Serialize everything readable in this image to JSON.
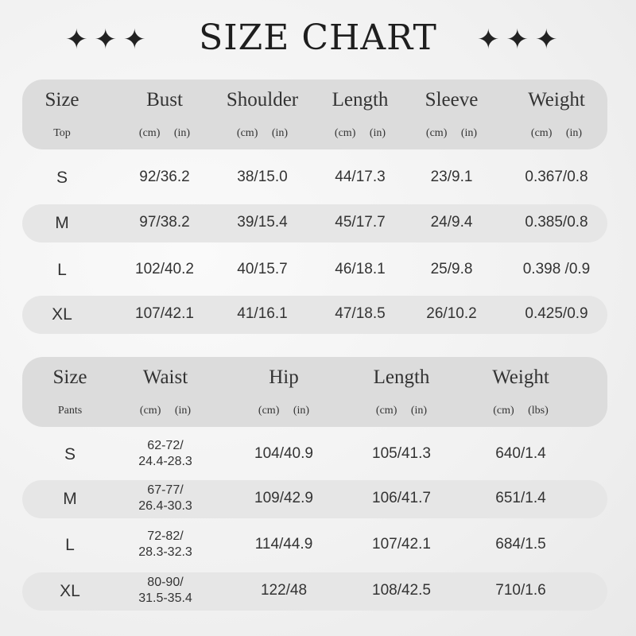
{
  "title": "SIZE CHART",
  "stars_left": "✦✦✦",
  "stars_right": "✦✦✦",
  "top": {
    "headers": [
      "Size",
      "Bust",
      "Shoulder",
      "Length",
      "Sleeve",
      "Weight"
    ],
    "category": "Top",
    "units": [
      "(cm) (in)",
      "(cm) (in)",
      "(cm) (in)",
      "(cm) (in)",
      "(cm) (in)"
    ],
    "rows": [
      [
        "S",
        "92/36.2",
        "38/15.0",
        "44/17.3",
        "23/9.1",
        "0.367/0.8"
      ],
      [
        "M",
        "97/38.2",
        "39/15.4",
        "45/17.7",
        "24/9.4",
        "0.385/0.8"
      ],
      [
        "L",
        "102/40.2",
        "40/15.7",
        "46/18.1",
        "25/9.8",
        "0.398 /0.9"
      ],
      [
        "XL",
        "107/42.1",
        "41/16.1",
        "47/18.5",
        "26/10.2",
        "0.425/0.9"
      ]
    ]
  },
  "pants": {
    "headers": [
      "Size",
      "Waist",
      "Hip",
      "Length",
      "Weight"
    ],
    "category": "Pants",
    "units": [
      "(cm) (in)",
      "(cm) (in)",
      "(cm) (in)",
      "(cm) (lbs)"
    ],
    "rows": [
      [
        "S",
        [
          "62-72/",
          "24.4-28.3"
        ],
        "104/40.9",
        "105/41.3",
        "640/1.4"
      ],
      [
        "M",
        [
          "67-77/",
          "26.4-30.3"
        ],
        "109/42.9",
        "106/41.7",
        "651/1.4"
      ],
      [
        "L",
        [
          "72-82/",
          "28.3-32.3"
        ],
        "114/44.9",
        "107/42.1",
        "684/1.5"
      ],
      [
        "XL",
        [
          "80-90/",
          "31.5-35.4"
        ],
        "122/48",
        "108/42.5",
        "710/1.6"
      ]
    ]
  }
}
